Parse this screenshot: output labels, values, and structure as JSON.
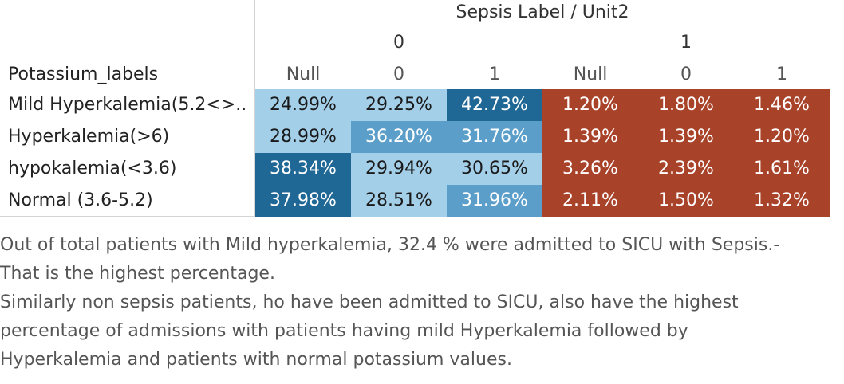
{
  "chart_data": {
    "type": "heatmap",
    "column_field": "Sepsis Label / Unit2",
    "row_field": "Potassium_labels",
    "column_groups": [
      {
        "label": "0",
        "columns": [
          "Null",
          "0",
          "1"
        ]
      },
      {
        "label": "1",
        "columns": [
          "Null",
          "0",
          "1"
        ]
      }
    ],
    "rows": [
      {
        "label": "Mild Hyperkalemia(5.2<>..",
        "values": [
          24.99,
          29.25,
          42.73,
          1.2,
          1.8,
          1.46
        ],
        "display": [
          "24.99%",
          "29.25%",
          "42.73%",
          "1.20%",
          "1.80%",
          "1.46%"
        ]
      },
      {
        "label": "Hyperkalemia(>6)",
        "values": [
          28.99,
          36.2,
          31.76,
          1.39,
          1.39,
          1.2
        ],
        "display": [
          "28.99%",
          "36.20%",
          "31.76%",
          "1.39%",
          "1.39%",
          "1.20%"
        ]
      },
      {
        "label": "hypokalemia(<3.6)",
        "values": [
          38.34,
          29.94,
          30.65,
          3.26,
          2.39,
          1.61
        ],
        "display": [
          "38.34%",
          "29.94%",
          "30.65%",
          "3.26%",
          "2.39%",
          "1.61%"
        ]
      },
      {
        "label": "Normal (3.6-5.2)",
        "values": [
          37.98,
          28.51,
          31.96,
          2.11,
          1.5,
          1.32
        ],
        "display": [
          "37.98%",
          "28.51%",
          "31.96%",
          "2.11%",
          "1.50%",
          "1.32%"
        ]
      }
    ],
    "colors": {
      "blue_light": "#a3cfe8",
      "blue_mid": "#5a9ec9",
      "blue_dark": "#1f6795",
      "red": "#a8432a"
    }
  },
  "notes": [
    "Out of total patients with Mild hyperkalemia, 32.4 % were admitted to SICU with Sepsis.-",
    "That is the highest percentage.",
    "Similarly non sepsis patients, ho have been admitted to SICU, also have the highest",
    "percentage of admissions with patients having mild Hyperkalemia followed by",
    "Hyperkalemia and patients with normal potassium values."
  ]
}
